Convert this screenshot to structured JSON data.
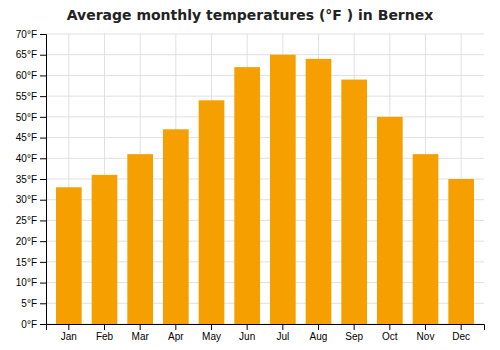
{
  "chart_data": {
    "type": "bar",
    "title": "Average monthly temperatures (°F ) in Bernex",
    "categories": [
      "Jan",
      "Feb",
      "Mar",
      "Apr",
      "May",
      "Jun",
      "Jul",
      "Aug",
      "Sep",
      "Oct",
      "Nov",
      "Dec"
    ],
    "values": [
      33,
      36,
      41,
      47,
      54,
      62,
      65,
      64,
      59,
      50,
      41,
      35
    ],
    "color": "#F5A000",
    "ylim": [
      0,
      70
    ],
    "yticks": [
      {
        "value": 0,
        "label": "0°F"
      },
      {
        "value": 5,
        "label": "5°F"
      },
      {
        "value": 10,
        "label": "10°F"
      },
      {
        "value": 15,
        "label": "15°F"
      },
      {
        "value": 20,
        "label": "20°F"
      },
      {
        "value": 25,
        "label": "25°F"
      },
      {
        "value": 30,
        "label": "30°F"
      },
      {
        "value": 35,
        "label": "35°F"
      },
      {
        "value": 40,
        "label": "40°F"
      },
      {
        "value": 45,
        "label": "45°F"
      },
      {
        "value": 50,
        "label": "50°F"
      },
      {
        "value": 55,
        "label": "55°F"
      },
      {
        "value": 60,
        "label": "60°F"
      },
      {
        "value": 65,
        "label": "65°F"
      },
      {
        "value": 70,
        "label": "70°F"
      }
    ],
    "grid": true
  }
}
